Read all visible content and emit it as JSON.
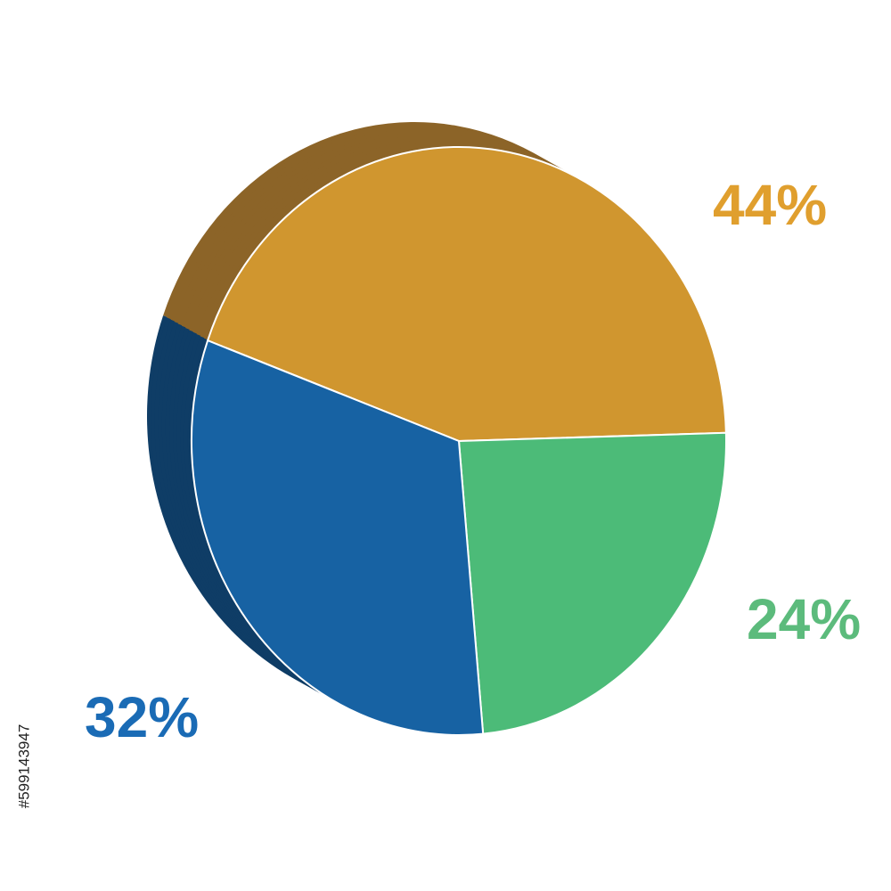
{
  "chart_data": {
    "type": "pie",
    "categories": [
      null,
      null,
      null
    ],
    "values": [
      44,
      24,
      32
    ],
    "value_labels": [
      "44%",
      "24%",
      "32%"
    ],
    "colors": [
      "#d0962f",
      "#4cbb78",
      "#1762a3"
    ],
    "side_colors": [
      "#8c6428",
      "#1d9e58",
      "#0f3d66"
    ],
    "label_colors": [
      "#e09f2e",
      "#5cbb7c",
      "#1a6bb5"
    ]
  },
  "side_text": "#599143947"
}
